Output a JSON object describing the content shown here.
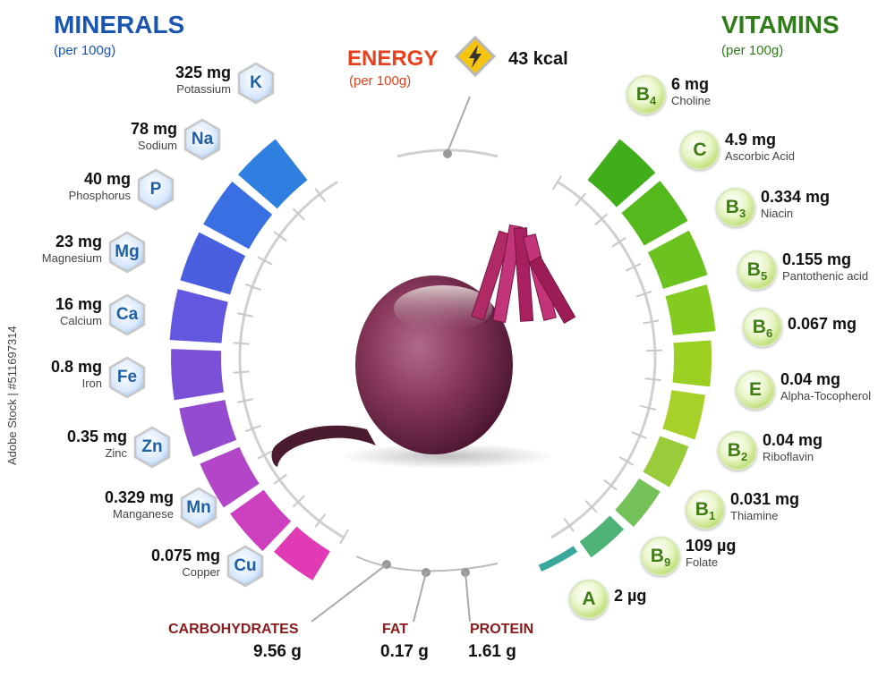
{
  "minerals": {
    "title": "MINERALS",
    "per": "(per 100g)",
    "items": [
      {
        "amount": "325 mg",
        "name": "Potassium",
        "symbol": "K"
      },
      {
        "amount": "78 mg",
        "name": "Sodium",
        "symbol": "Na"
      },
      {
        "amount": "40 mg",
        "name": "Phosphorus",
        "symbol": "P"
      },
      {
        "amount": "23 mg",
        "name": "Magnesium",
        "symbol": "Mg"
      },
      {
        "amount": "16 mg",
        "name": "Calcium",
        "symbol": "Ca"
      },
      {
        "amount": "0.8 mg",
        "name": "Iron",
        "symbol": "Fe"
      },
      {
        "amount": "0.35 mg",
        "name": "Zinc",
        "symbol": "Zn"
      },
      {
        "amount": "0.329 mg",
        "name": "Manganese",
        "symbol": "Mn"
      },
      {
        "amount": "0.075 mg",
        "name": "Copper",
        "symbol": "Cu"
      }
    ]
  },
  "vitamins": {
    "title": "VITAMINS",
    "per": "(per 100g)",
    "items": [
      {
        "amount": "6 mg",
        "name": "Choline",
        "letter": "B",
        "sub": "4"
      },
      {
        "amount": "4.9 mg",
        "name": "Ascorbic Acid",
        "letter": "C",
        "sub": ""
      },
      {
        "amount": "0.334 mg",
        "name": "Niacin",
        "letter": "B",
        "sub": "3"
      },
      {
        "amount": "0.155 mg",
        "name": "Pantothenic acid",
        "letter": "B",
        "sub": "5"
      },
      {
        "amount": "0.067 mg",
        "name": "",
        "letter": "B",
        "sub": "6"
      },
      {
        "amount": "0.04 mg",
        "name": "Alpha-Tocopherol",
        "letter": "E",
        "sub": ""
      },
      {
        "amount": "0.04 mg",
        "name": "Riboflavin",
        "letter": "B",
        "sub": "2"
      },
      {
        "amount": "0.031 mg",
        "name": "Thiamine",
        "letter": "B",
        "sub": "1"
      },
      {
        "amount": "109 µg",
        "name": "Folate",
        "letter": "B",
        "sub": "9"
      },
      {
        "amount": "2 µg",
        "name": "",
        "letter": "A",
        "sub": ""
      }
    ]
  },
  "energy": {
    "title": "ENERGY",
    "per": "(per 100g)",
    "value": "43 kcal"
  },
  "macros": [
    {
      "name": "CARBOHYDRATES",
      "value": "9.56 g"
    },
    {
      "name": "FAT",
      "value": "0.17 g"
    },
    {
      "name": "PROTEIN",
      "value": "1.61 g"
    }
  ],
  "watermark": "Adobe Stock | #511697314",
  "colors": {
    "minerals_title": "#1a56b0",
    "vitamins_title": "#2e7d1a",
    "energy_title": "#e8401c",
    "macro_name": "#8b1a1a"
  }
}
